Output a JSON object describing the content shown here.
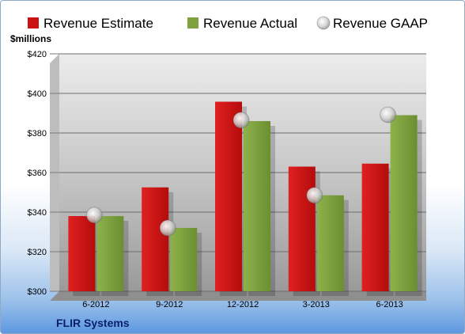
{
  "chart_data": {
    "type": "bar",
    "categories": [
      "6-2012",
      "9-2012",
      "12-2012",
      "3-2013",
      "6-2013"
    ],
    "series": [
      {
        "name": "Revenue Estimate",
        "type": "bar",
        "color": "#cc1111",
        "values": [
          338,
          352.5,
          395.8,
          363,
          364.5
        ]
      },
      {
        "name": "Revenue Actual",
        "type": "bar",
        "color": "#7fa23f",
        "values": [
          338,
          332,
          386,
          348.5,
          389
        ]
      },
      {
        "name": "Revenue GAAP",
        "type": "marker",
        "color": "#c8c8c8",
        "values": [
          338.5,
          332,
          386.5,
          348.5,
          389.2
        ]
      }
    ],
    "ylabel": "$millions",
    "ylim": [
      300,
      420
    ],
    "yticks": [
      300,
      320,
      340,
      360,
      380,
      400,
      420
    ],
    "ytick_labels": [
      "$300",
      "$320",
      "$340",
      "$360",
      "$380",
      "$400",
      "$420"
    ],
    "grid": true,
    "legend_position": "top"
  },
  "company": "FLIR Systems"
}
